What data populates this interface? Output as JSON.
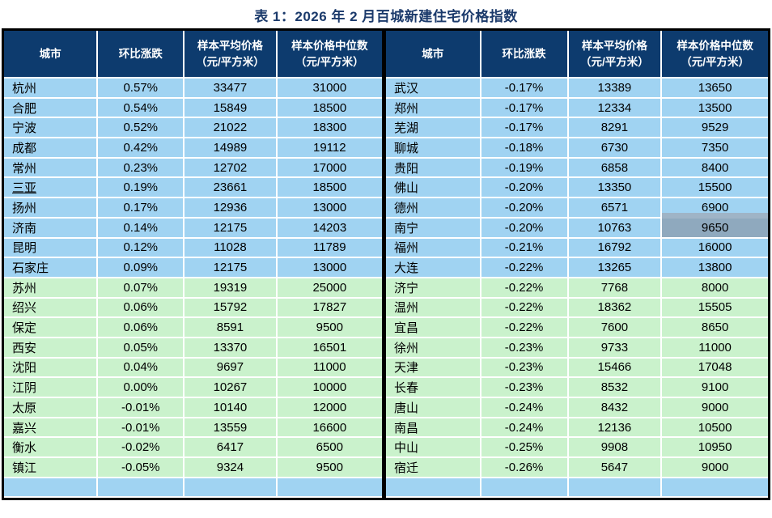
{
  "title": "表 1：2026 年 2 月百城新建住宅价格指数",
  "colors": {
    "title": "#1B3A6B",
    "header_bg": "#0D3B6E",
    "header_text": "#FFFFFF",
    "row_blue": "#A0D3F2",
    "row_green": "#CAF2CC",
    "highlight_cell": "#8FA9BE",
    "gridline": "#FFFFFF",
    "table_border": "#000000"
  },
  "columns": [
    {
      "key": "city",
      "label": "城市",
      "sub": ""
    },
    {
      "key": "change",
      "label": "环比涨跌",
      "sub": ""
    },
    {
      "key": "avg",
      "label": "样本平均价格",
      "sub": "（元/平方米）"
    },
    {
      "key": "median",
      "label": "样本价格中位数",
      "sub": "（元/平方米）"
    }
  ],
  "highlight": {
    "table_index": 1,
    "city": "南宁",
    "column": "median"
  },
  "tables": [
    {
      "name": "left",
      "rows": [
        {
          "city": "杭州",
          "change": "0.57%",
          "avg": "33477",
          "median": "31000",
          "group": "blue"
        },
        {
          "city": "合肥",
          "change": "0.54%",
          "avg": "15849",
          "median": "18500",
          "group": "blue"
        },
        {
          "city": "宁波",
          "change": "0.52%",
          "avg": "21022",
          "median": "18300",
          "group": "blue"
        },
        {
          "city": "成都",
          "change": "0.42%",
          "avg": "14989",
          "median": "19112",
          "group": "blue"
        },
        {
          "city": "常州",
          "change": "0.23%",
          "avg": "12702",
          "median": "17000",
          "group": "blue"
        },
        {
          "city": "三亚",
          "change": "0.19%",
          "avg": "23661",
          "median": "18500",
          "group": "blue",
          "underline": true
        },
        {
          "city": "扬州",
          "change": "0.17%",
          "avg": "12936",
          "median": "13000",
          "group": "blue"
        },
        {
          "city": "济南",
          "change": "0.14%",
          "avg": "12175",
          "median": "14203",
          "group": "blue"
        },
        {
          "city": "昆明",
          "change": "0.12%",
          "avg": "11028",
          "median": "11789",
          "group": "blue"
        },
        {
          "city": "石家庄",
          "change": "0.09%",
          "avg": "12175",
          "median": "13000",
          "group": "blue"
        },
        {
          "city": "苏州",
          "change": "0.07%",
          "avg": "19319",
          "median": "25000",
          "group": "green"
        },
        {
          "city": "绍兴",
          "change": "0.06%",
          "avg": "15792",
          "median": "17827",
          "group": "green"
        },
        {
          "city": "保定",
          "change": "0.06%",
          "avg": "8591",
          "median": "9500",
          "group": "green"
        },
        {
          "city": "西安",
          "change": "0.05%",
          "avg": "13370",
          "median": "16501",
          "group": "green"
        },
        {
          "city": "沈阳",
          "change": "0.04%",
          "avg": "9697",
          "median": "11000",
          "group": "green"
        },
        {
          "city": "江阴",
          "change": "0.00%",
          "avg": "10267",
          "median": "10000",
          "group": "green"
        },
        {
          "city": "太原",
          "change": "-0.01%",
          "avg": "10140",
          "median": "12000",
          "group": "green"
        },
        {
          "city": "嘉兴",
          "change": "-0.01%",
          "avg": "13559",
          "median": "16600",
          "group": "green"
        },
        {
          "city": "衡水",
          "change": "-0.02%",
          "avg": "6417",
          "median": "6500",
          "group": "green"
        },
        {
          "city": "镇江",
          "change": "-0.05%",
          "avg": "9324",
          "median": "9500",
          "group": "green"
        }
      ]
    },
    {
      "name": "right",
      "rows": [
        {
          "city": "武汉",
          "change": "-0.17%",
          "avg": "13389",
          "median": "13650",
          "group": "blue"
        },
        {
          "city": "郑州",
          "change": "-0.17%",
          "avg": "12334",
          "median": "13500",
          "group": "blue"
        },
        {
          "city": "芜湖",
          "change": "-0.17%",
          "avg": "8291",
          "median": "9529",
          "group": "blue"
        },
        {
          "city": "聊城",
          "change": "-0.18%",
          "avg": "6730",
          "median": "7350",
          "group": "blue"
        },
        {
          "city": "贵阳",
          "change": "-0.19%",
          "avg": "6858",
          "median": "8400",
          "group": "blue"
        },
        {
          "city": "佛山",
          "change": "-0.20%",
          "avg": "13350",
          "median": "15500",
          "group": "blue"
        },
        {
          "city": "德州",
          "change": "-0.20%",
          "avg": "6571",
          "median": "6900",
          "group": "blue"
        },
        {
          "city": "南宁",
          "change": "-0.20%",
          "avg": "10763",
          "median": "9650",
          "group": "blue"
        },
        {
          "city": "福州",
          "change": "-0.21%",
          "avg": "16792",
          "median": "16000",
          "group": "blue"
        },
        {
          "city": "大连",
          "change": "-0.22%",
          "avg": "13265",
          "median": "13800",
          "group": "blue"
        },
        {
          "city": "济宁",
          "change": "-0.22%",
          "avg": "7768",
          "median": "8000",
          "group": "green"
        },
        {
          "city": "温州",
          "change": "-0.22%",
          "avg": "18362",
          "median": "15505",
          "group": "green"
        },
        {
          "city": "宜昌",
          "change": "-0.22%",
          "avg": "7600",
          "median": "8650",
          "group": "green"
        },
        {
          "city": "徐州",
          "change": "-0.23%",
          "avg": "9733",
          "median": "11000",
          "group": "green"
        },
        {
          "city": "天津",
          "change": "-0.23%",
          "avg": "15466",
          "median": "17048",
          "group": "green"
        },
        {
          "city": "长春",
          "change": "-0.23%",
          "avg": "8532",
          "median": "9100",
          "group": "green"
        },
        {
          "city": "唐山",
          "change": "-0.24%",
          "avg": "8432",
          "median": "9000",
          "group": "green"
        },
        {
          "city": "南昌",
          "change": "-0.24%",
          "avg": "12136",
          "median": "10500",
          "group": "green"
        },
        {
          "city": "中山",
          "change": "-0.25%",
          "avg": "9908",
          "median": "10950",
          "group": "green"
        },
        {
          "city": "宿迁",
          "change": "-0.26%",
          "avg": "5647",
          "median": "9000",
          "group": "green"
        }
      ]
    }
  ]
}
